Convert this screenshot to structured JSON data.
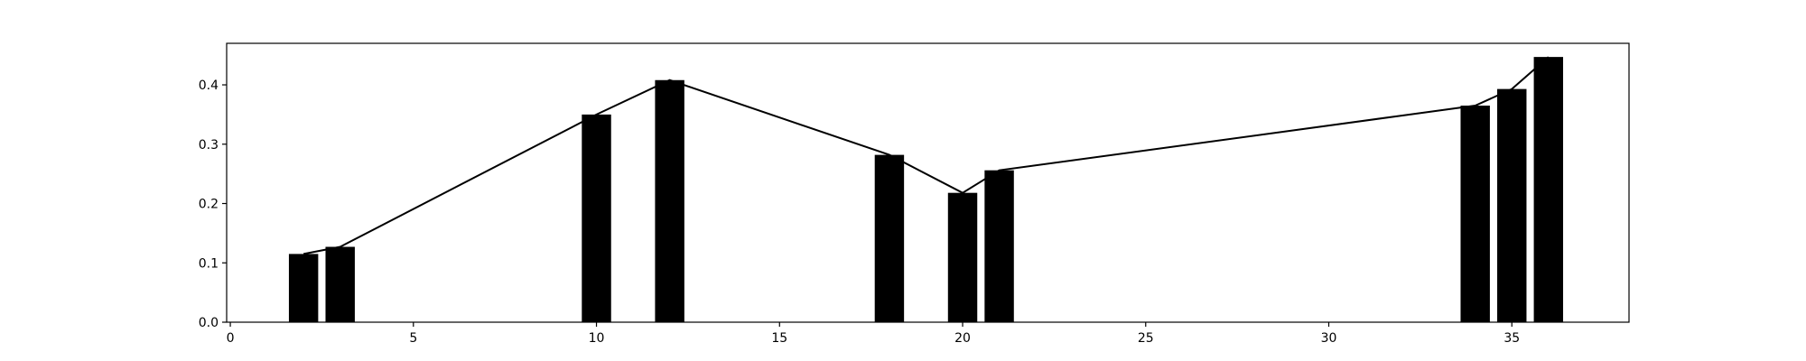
{
  "chart_data": {
    "type": "bar",
    "title": "",
    "xlabel": "",
    "ylabel": "",
    "xlim": [
      -0.1,
      38.2
    ],
    "ylim": [
      0.0,
      0.47
    ],
    "x_ticks": [
      0,
      5,
      10,
      15,
      20,
      25,
      30,
      35
    ],
    "y_ticks": [
      0.0,
      0.1,
      0.2,
      0.3,
      0.4
    ],
    "x_tick_labels": [
      "0",
      "5",
      "10",
      "15",
      "20",
      "25",
      "30",
      "35"
    ],
    "y_tick_labels": [
      "0.0",
      "0.1",
      "0.2",
      "0.3",
      "0.4"
    ],
    "grid": false,
    "bar_width": 0.8,
    "x": [
      2,
      3,
      10,
      12,
      18,
      20,
      21,
      34,
      35,
      36
    ],
    "values": [
      0.115,
      0.127,
      0.35,
      0.408,
      0.282,
      0.218,
      0.256,
      0.365,
      0.393,
      0.447
    ],
    "line_overlay": true,
    "colors": {
      "bar": "#000000",
      "line": "#000000"
    }
  }
}
